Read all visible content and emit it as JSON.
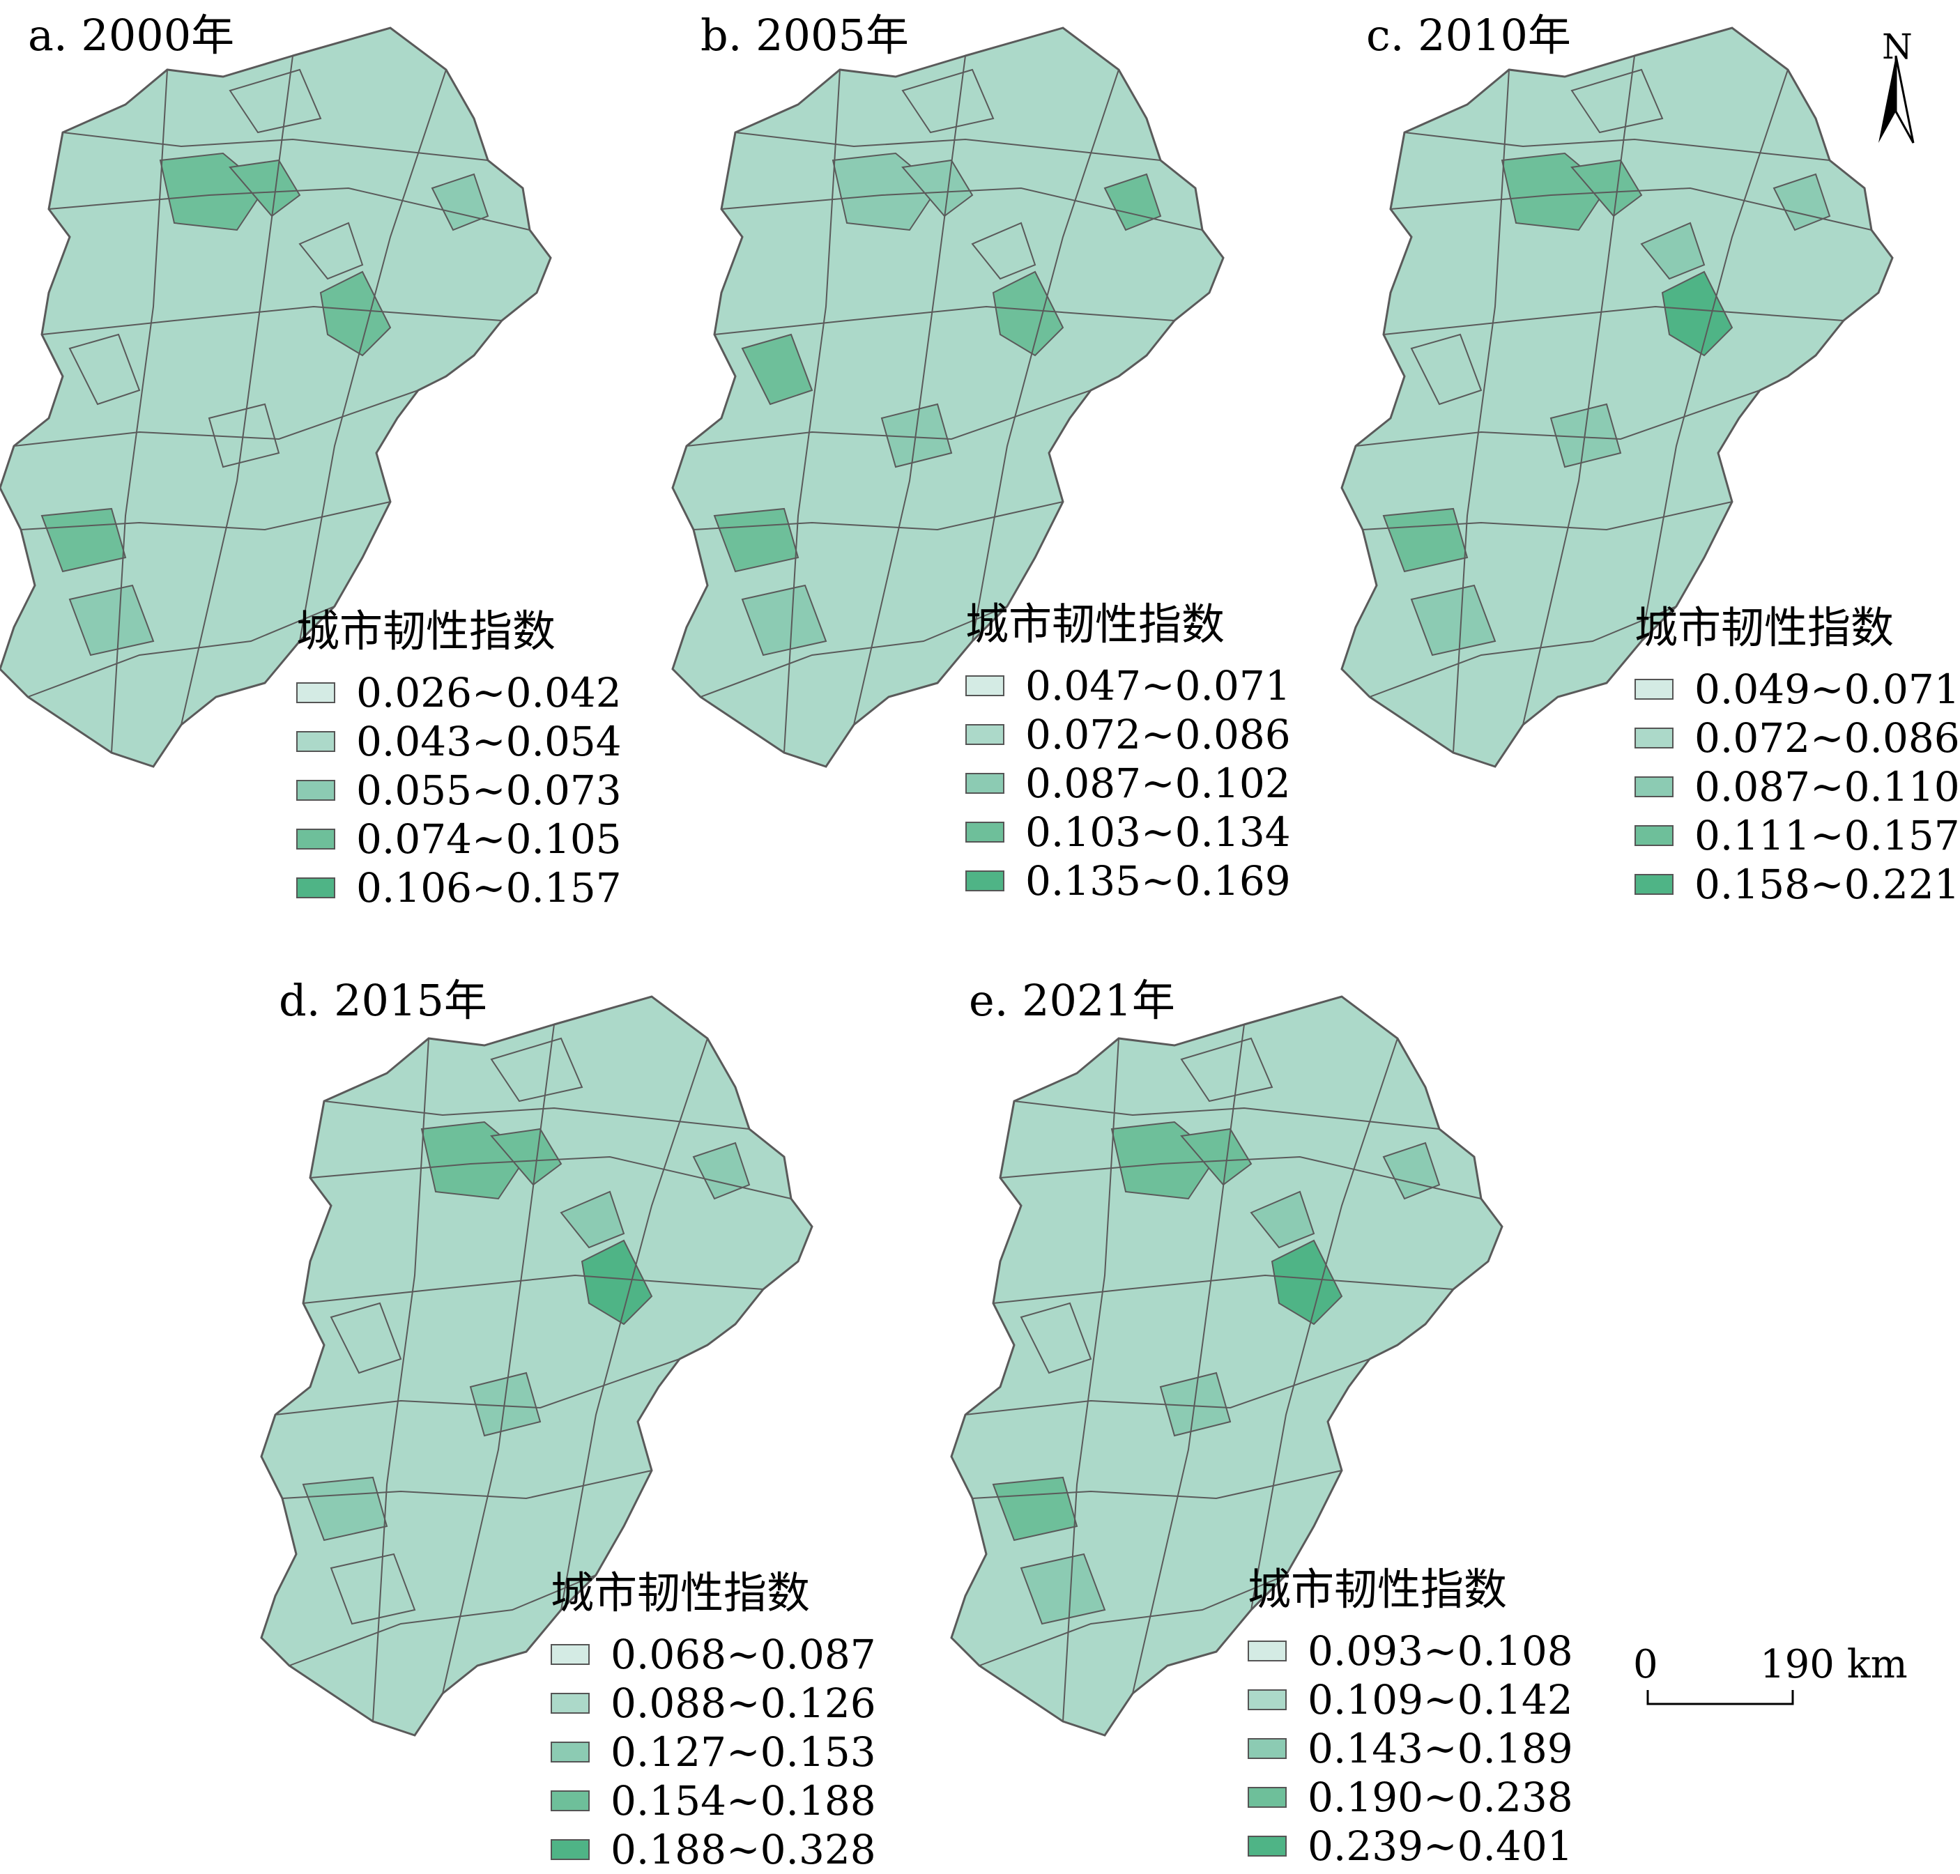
{
  "legend_title": "城市韧性指数",
  "class_colors": [
    "#d4ebe4",
    "#acd9c9",
    "#8ccbb3",
    "#6ebf9a",
    "#4fb486"
  ],
  "outline_color": "#5a5a5a",
  "north_label": "N",
  "scale": {
    "zero": "0",
    "distance": "190 km"
  },
  "panels": [
    {
      "title": "a. 2000年",
      "classes": [
        "0.026~0.042",
        "0.043~0.054",
        "0.055~0.073",
        "0.074~0.105",
        "0.106~0.157"
      ]
    },
    {
      "title": "b. 2005年",
      "classes": [
        "0.047~0.071",
        "0.072~0.086",
        "0.087~0.102",
        "0.103~0.134",
        "0.135~0.169"
      ]
    },
    {
      "title": "c. 2010年",
      "classes": [
        "0.049~0.071",
        "0.072~0.086",
        "0.087~0.110",
        "0.111~0.157",
        "0.158~0.221"
      ]
    },
    {
      "title": "d. 2015年",
      "classes": [
        "0.068~0.087",
        "0.088~0.126",
        "0.127~0.153",
        "0.154~0.188",
        "0.188~0.328"
      ]
    },
    {
      "title": "e. 2021年",
      "classes": [
        "0.093~0.108",
        "0.109~0.142",
        "0.143~0.189",
        "0.190~0.238",
        "0.239~0.401"
      ]
    }
  ]
}
